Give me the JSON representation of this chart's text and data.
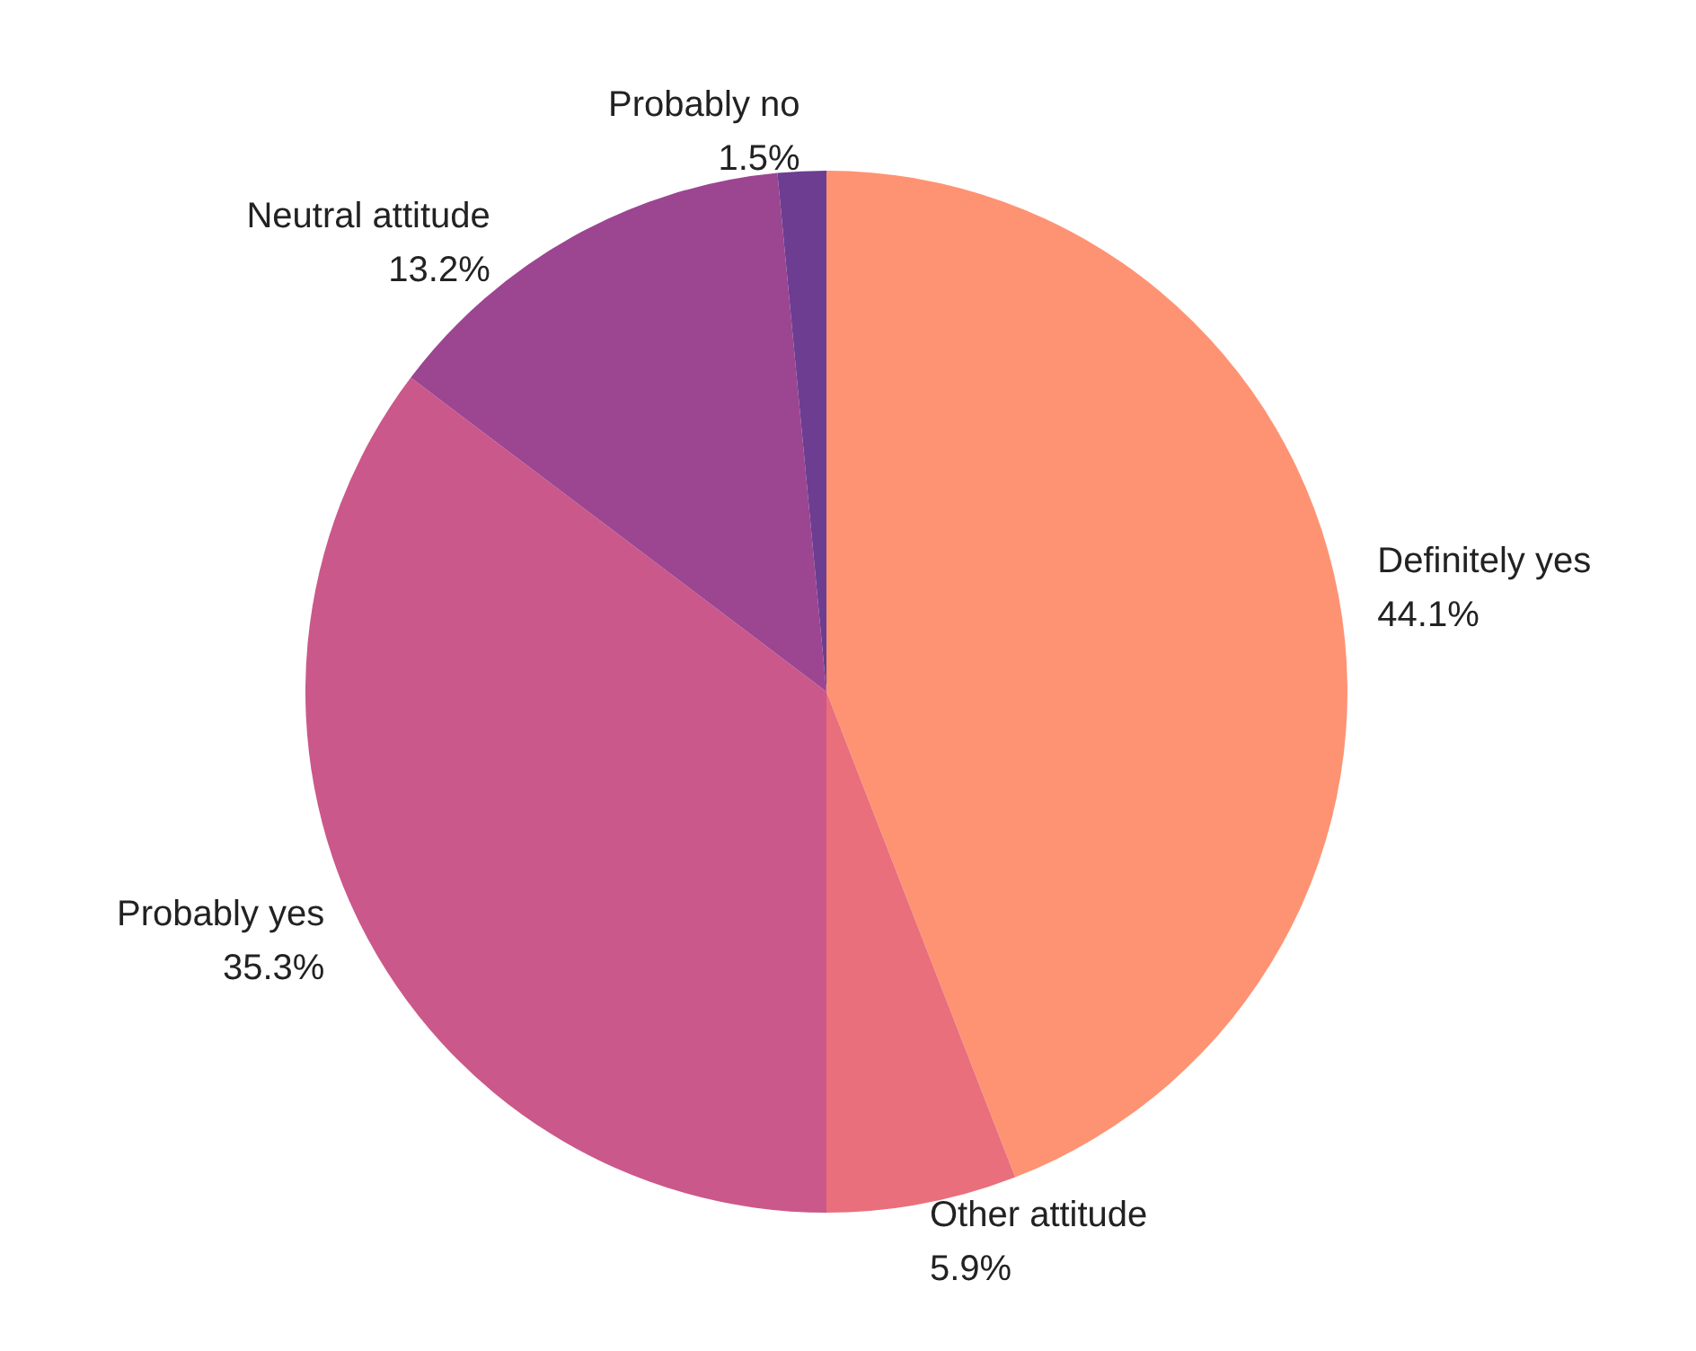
{
  "chart_data": {
    "type": "pie",
    "categories": [
      "Definitely yes",
      "Other attitude",
      "Probably yes",
      "Neutral attitude",
      "Probably no"
    ],
    "values": [
      44.1,
      5.9,
      35.3,
      13.2,
      1.5
    ],
    "colors": [
      "#fe9373",
      "#e96f7c",
      "#cb588a",
      "#9c4591",
      "#6c3d91"
    ],
    "value_labels": [
      "44.1%",
      "5.9%",
      "35.3%",
      "13.2%",
      "1.5%"
    ],
    "legend": false
  }
}
